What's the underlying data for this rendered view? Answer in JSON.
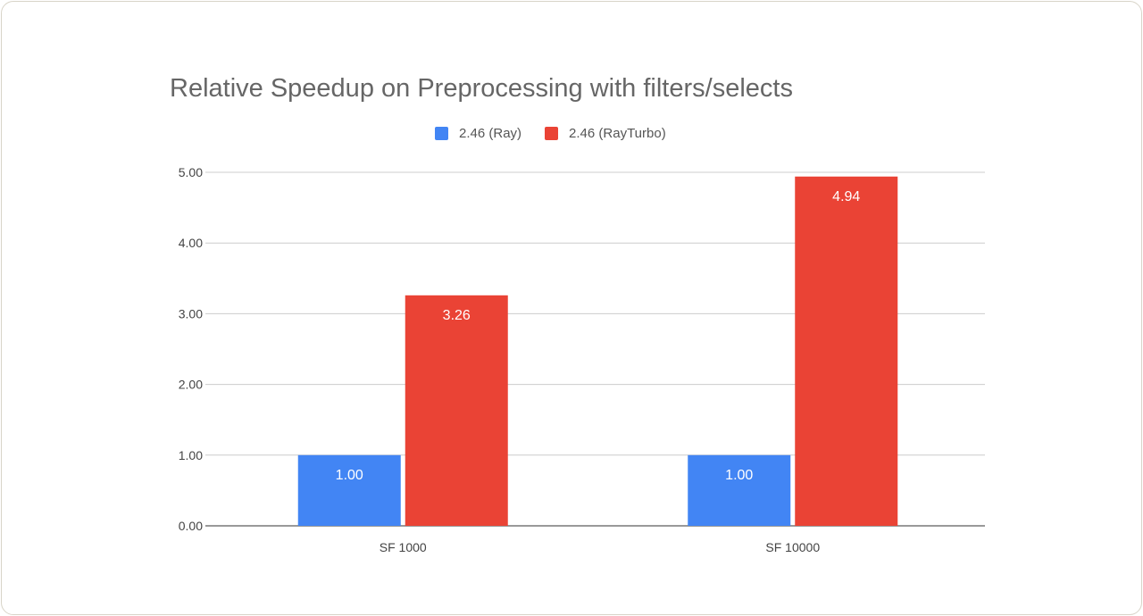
{
  "chart_data": {
    "type": "bar",
    "title": "Relative Speedup on Preprocessing with filters/selects",
    "categories": [
      "SF 1000",
      "SF 10000"
    ],
    "series": [
      {
        "name": "2.46 (Ray)",
        "color": "#4285f4",
        "values": [
          1.0,
          1.0
        ]
      },
      {
        "name": "2.46 (RayTurbo)",
        "color": "#ea4335",
        "values": [
          3.26,
          4.94
        ]
      }
    ],
    "yticks": [
      "0.00",
      "1.00",
      "2.00",
      "3.00",
      "4.00",
      "5.00"
    ],
    "ylim": [
      0,
      5
    ],
    "grid": true,
    "legend_position": "top",
    "data_labels": [
      [
        "1.00",
        "1.00"
      ],
      [
        "3.26",
        "4.94"
      ]
    ]
  }
}
